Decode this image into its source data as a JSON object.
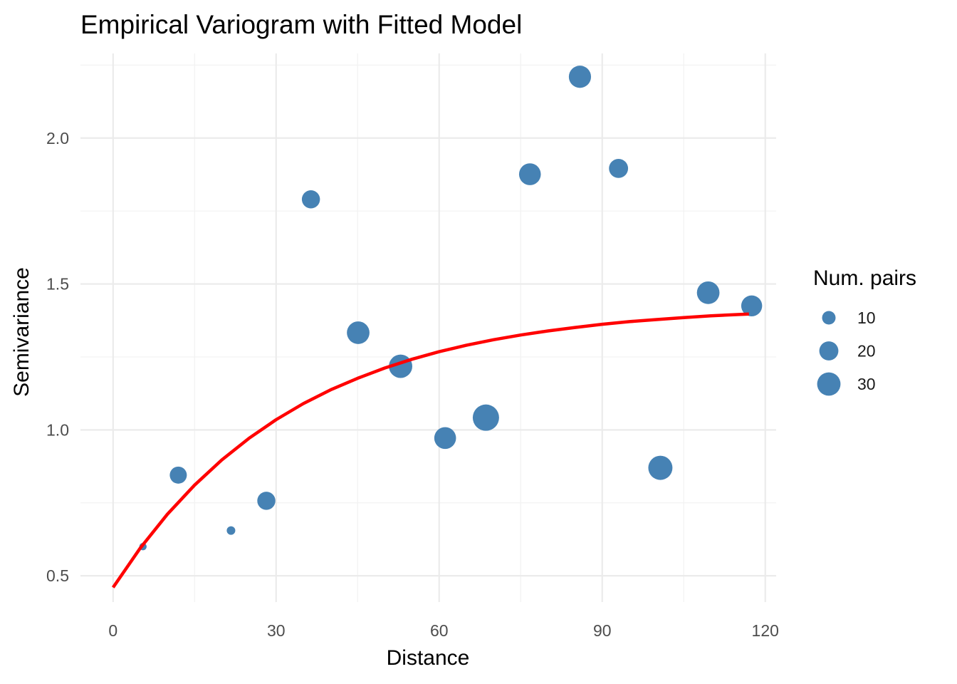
{
  "chart_data": {
    "type": "scatter",
    "title": "Empirical Variogram with Fitted Model",
    "xlabel": "Distance",
    "ylabel": "Semivariance",
    "xlim": [
      -6,
      122
    ],
    "ylim": [
      0.41,
      2.29
    ],
    "x_ticks": [
      0,
      30,
      60,
      90,
      120
    ],
    "x_tick_labels": [
      "0",
      "30",
      "60",
      "90",
      "120"
    ],
    "y_ticks": [
      0.5,
      1.0,
      1.5,
      2.0
    ],
    "y_tick_labels": [
      "0.5",
      "1.0",
      "1.5",
      "2.0"
    ],
    "grid": true,
    "point_color": "#4682B4",
    "line_color": "#FF0000",
    "points": [
      {
        "x": 5.5,
        "y": 0.6,
        "n": 3
      },
      {
        "x": 12.0,
        "y": 0.845,
        "n": 16
      },
      {
        "x": 21.7,
        "y": 0.655,
        "n": 4
      },
      {
        "x": 28.2,
        "y": 0.757,
        "n": 18
      },
      {
        "x": 36.4,
        "y": 1.79,
        "n": 18
      },
      {
        "x": 45.1,
        "y": 1.333,
        "n": 28
      },
      {
        "x": 52.9,
        "y": 1.218,
        "n": 30
      },
      {
        "x": 61.1,
        "y": 0.972,
        "n": 26
      },
      {
        "x": 68.6,
        "y": 1.042,
        "n": 38
      },
      {
        "x": 76.7,
        "y": 1.876,
        "n": 26
      },
      {
        "x": 85.9,
        "y": 2.21,
        "n": 27
      },
      {
        "x": 93.0,
        "y": 1.896,
        "n": 20
      },
      {
        "x": 100.7,
        "y": 0.87,
        "n": 32
      },
      {
        "x": 109.5,
        "y": 1.47,
        "n": 28
      },
      {
        "x": 117.5,
        "y": 1.425,
        "n": 24
      }
    ],
    "fitted_model": {
      "x": [
        0,
        5,
        10,
        15,
        20,
        25,
        30,
        35,
        40,
        45,
        50,
        55,
        60,
        65,
        70,
        75,
        80,
        85,
        90,
        95,
        100,
        105,
        110,
        117
      ],
      "y": [
        0.46,
        0.595,
        0.711,
        0.811,
        0.897,
        0.971,
        1.035,
        1.09,
        1.137,
        1.177,
        1.212,
        1.242,
        1.268,
        1.29,
        1.309,
        1.325,
        1.339,
        1.351,
        1.362,
        1.371,
        1.378,
        1.385,
        1.391,
        1.397
      ]
    },
    "legend": {
      "title": "Num. pairs",
      "position": "right",
      "entries": [
        {
          "label": "10",
          "n": 10
        },
        {
          "label": "20",
          "n": 20
        },
        {
          "label": "30",
          "n": 30
        }
      ]
    }
  }
}
